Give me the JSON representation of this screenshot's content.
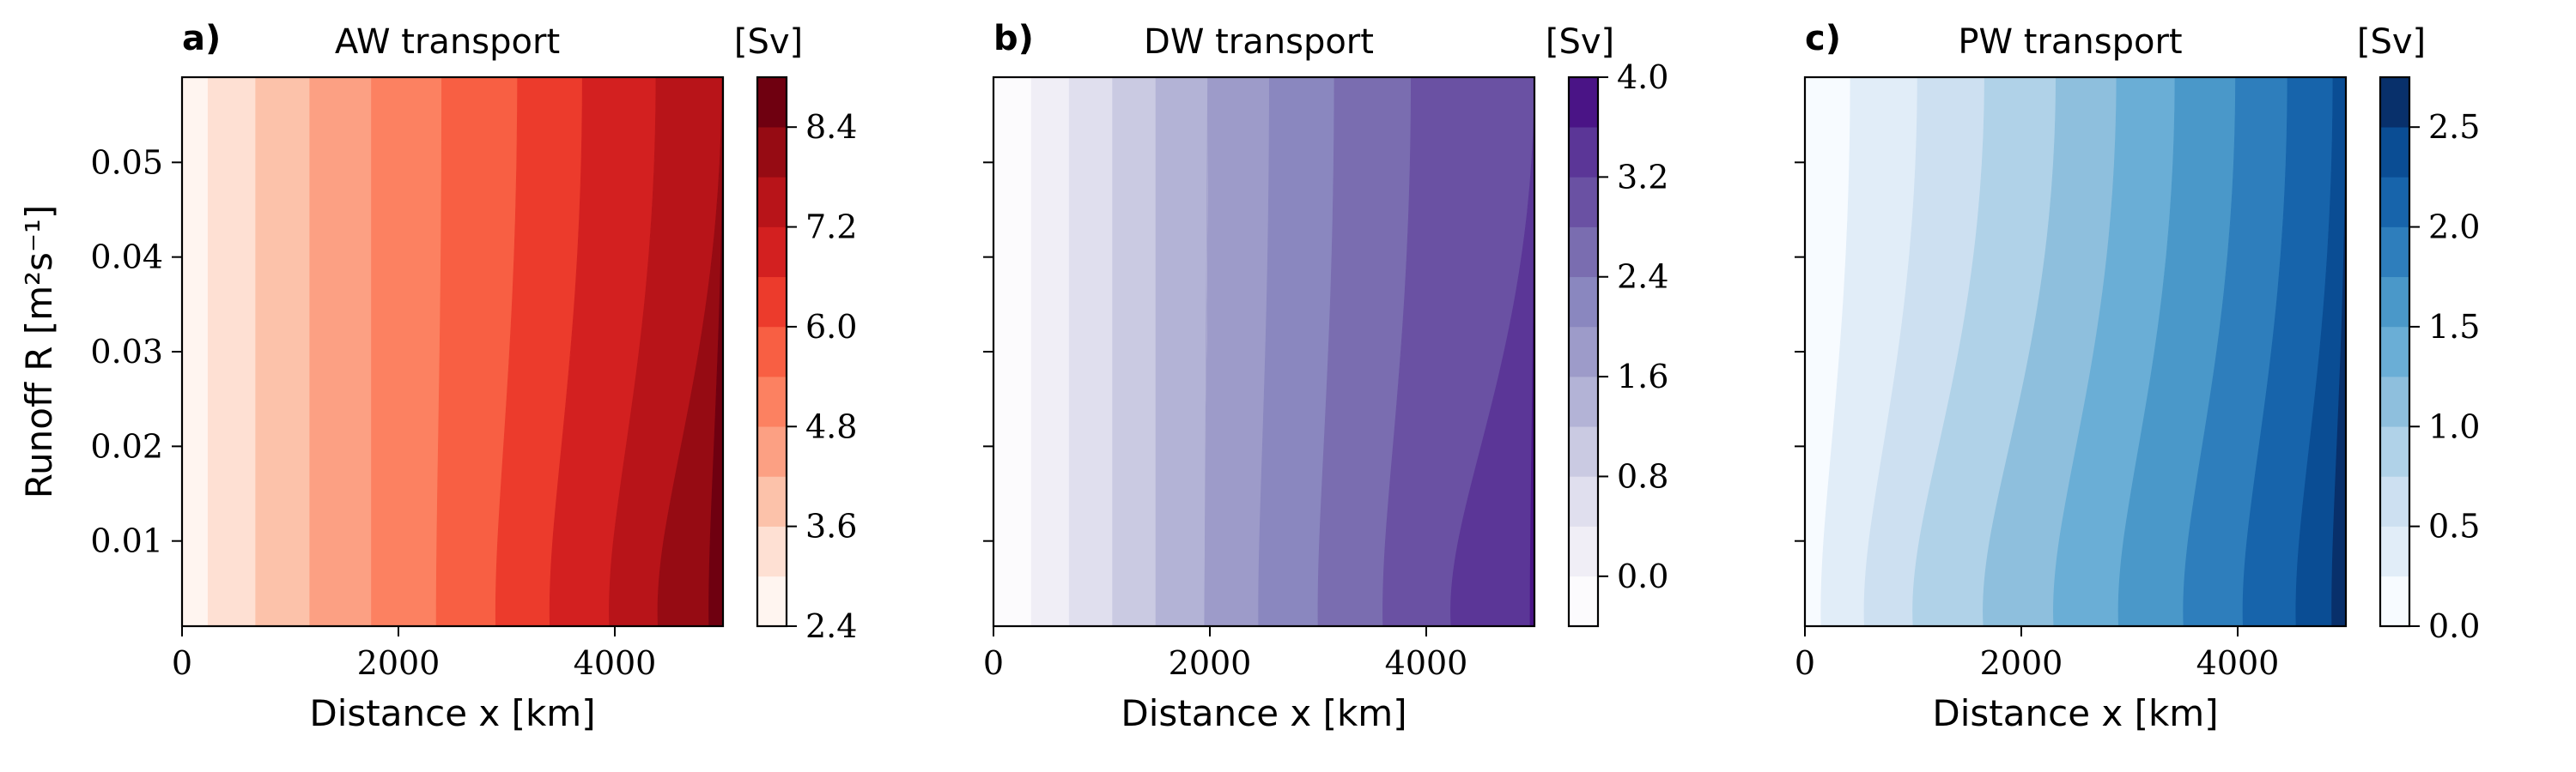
{
  "chart_data": [
    {
      "type": "contour",
      "panel_label": "a)",
      "title": "AW transport",
      "xlabel": "Distance x [km]",
      "ylabel": "Runoff R [m²s⁻¹]",
      "xlim": [
        0,
        5000
      ],
      "ylim": [
        0.001,
        0.059
      ],
      "xticks": [
        0,
        2000,
        4000
      ],
      "xtick_labels": [
        "0",
        "2000",
        "4000"
      ],
      "yticks": [
        0.01,
        0.02,
        0.03,
        0.04,
        0.05
      ],
      "ytick_labels": [
        "0.01",
        "0.02",
        "0.03",
        "0.04",
        "0.05"
      ],
      "show_ytick_labels": true,
      "colorbar_label": "[Sv]",
      "colorbar_range": [
        2.4,
        9.0
      ],
      "colorbar_ticks": [
        2.4,
        3.6,
        4.8,
        6.0,
        7.2,
        8.4
      ],
      "colorbar_tick_labels": [
        "2.4",
        "3.6",
        "4.8",
        "6.0",
        "7.2",
        "8.4"
      ],
      "levels": [
        2.4,
        3.0,
        3.6,
        4.2,
        4.8,
        5.4,
        6.0,
        6.6,
        7.2,
        7.8,
        8.4,
        9.0
      ],
      "colors": [
        "#fff5f0",
        "#fee0d3",
        "#fcc2aa",
        "#fca083",
        "#fc8161",
        "#f85f43",
        "#ec3b2c",
        "#d32020",
        "#b81419",
        "#960b13",
        "#6f0010"
      ],
      "boundaries_top": [
        240,
        680,
        1180,
        1750,
        2400,
        3100,
        3700,
        4380,
        4990,
        5000
      ],
      "boundaries_bottom": [
        240,
        680,
        1180,
        1750,
        2350,
        2900,
        3400,
        3950,
        4400,
        4870
      ]
    },
    {
      "type": "contour",
      "panel_label": "b)",
      "title": "DW transport",
      "xlabel": "Distance x [km]",
      "ylabel": "",
      "xlim": [
        0,
        5000
      ],
      "ylim": [
        0.001,
        0.059
      ],
      "xticks": [
        0,
        2000,
        4000
      ],
      "xtick_labels": [
        "0",
        "2000",
        "4000"
      ],
      "yticks": [
        0.01,
        0.02,
        0.03,
        0.04,
        0.05
      ],
      "ytick_labels": [],
      "show_ytick_labels": false,
      "colorbar_label": "[Sv]",
      "colorbar_range": [
        -0.4,
        4.0
      ],
      "colorbar_ticks": [
        0.0,
        0.8,
        1.6,
        2.4,
        3.2,
        4.0
      ],
      "colorbar_tick_labels": [
        "0.0",
        "0.8",
        "1.6",
        "2.4",
        "3.2",
        "4.0"
      ],
      "levels": [
        -0.4,
        0.0,
        0.4,
        0.8,
        1.2,
        1.6,
        2.0,
        2.4,
        2.8,
        3.2,
        3.6,
        4.0
      ],
      "colors": [
        "#fcfbfd",
        "#f0eef6",
        "#e0dfee",
        "#cacae2",
        "#b3b3d6",
        "#9d9bc9",
        "#8a87bf",
        "#7a6db0",
        "#6a51a3",
        "#5b3697",
        "#4a1486"
      ],
      "boundaries_top": [
        350,
        700,
        1100,
        1500,
        1980,
        2550,
        3150,
        3860,
        5000,
        5000
      ],
      "boundaries_bottom": [
        350,
        700,
        1100,
        1500,
        1950,
        2450,
        3000,
        3600,
        4230,
        4960
      ]
    },
    {
      "type": "contour",
      "panel_label": "c)",
      "title": "PW transport",
      "xlabel": "Distance x [km]",
      "ylabel": "",
      "xlim": [
        0,
        5000
      ],
      "ylim": [
        0.001,
        0.059
      ],
      "xticks": [
        0,
        2000,
        4000
      ],
      "xtick_labels": [
        "0",
        "2000",
        "4000"
      ],
      "yticks": [
        0.01,
        0.02,
        0.03,
        0.04,
        0.05
      ],
      "ytick_labels": [],
      "show_ytick_labels": false,
      "colorbar_label": "[Sv]",
      "colorbar_range": [
        0.0,
        2.75
      ],
      "colorbar_ticks": [
        0.0,
        0.5,
        1.0,
        1.5,
        2.0,
        2.5
      ],
      "colorbar_tick_labels": [
        "0.0",
        "0.5",
        "1.0",
        "1.5",
        "2.0",
        "2.5"
      ],
      "levels": [
        0.0,
        0.25,
        0.5,
        0.75,
        1.0,
        1.25,
        1.5,
        1.75,
        2.0,
        2.25,
        2.5,
        2.75
      ],
      "colors": [
        "#f7fbff",
        "#e1edf8",
        "#cde0f1",
        "#b0d2e8",
        "#8ebfdd",
        "#6aaed6",
        "#4a98c9",
        "#2e7ebc",
        "#1764ab",
        "#0a4d94",
        "#08306b"
      ],
      "boundaries_top": [
        420,
        1040,
        1660,
        2320,
        2880,
        3420,
        3980,
        4460,
        4880,
        5000
      ],
      "boundaries_bottom": [
        150,
        550,
        1000,
        1650,
        2300,
        2900,
        3500,
        4050,
        4540,
        4870
      ]
    }
  ]
}
